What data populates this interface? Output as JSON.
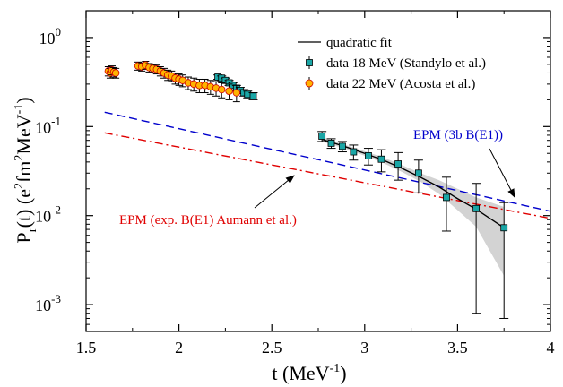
{
  "chart_data": {
    "type": "scatter",
    "title": "",
    "xlabel": "t (MeV",
    "xlabel_sup": "-1",
    "xlabel_close": ")",
    "ylabel_main": "P",
    "ylabel_sub": "r",
    "ylabel_mid": "(t)  (e",
    "ylabel_sup1": "2",
    "ylabel_fm": "fm",
    "ylabel_sup2": "2",
    "ylabel_mev": "MeV",
    "ylabel_sup3": "-1",
    "ylabel_close": ")",
    "xlim": [
      1.5,
      4.0
    ],
    "ylim": [
      0.0005,
      2.0
    ],
    "y_scale": "log",
    "x_ticks": [
      {
        "value": 1.5,
        "label": "1.5"
      },
      {
        "value": 2.0,
        "label": "2"
      },
      {
        "value": 2.5,
        "label": "2.5"
      },
      {
        "value": 3.0,
        "label": "3"
      },
      {
        "value": 3.5,
        "label": "3.5"
      },
      {
        "value": 4.0,
        "label": "4"
      }
    ],
    "y_ticks": [
      {
        "value": 0.001,
        "mant": "10",
        "exp": "-3"
      },
      {
        "value": 0.01,
        "mant": "10",
        "exp": "-2"
      },
      {
        "value": 0.1,
        "mant": "10",
        "exp": "-1"
      },
      {
        "value": 1,
        "mant": "10",
        "exp": "0"
      }
    ],
    "legend_position": "top-right",
    "legend": [
      {
        "label": "quadratic fit",
        "kind": "line",
        "color": "#000000"
      },
      {
        "label": "data 18 MeV (Standylo et al.)",
        "kind": "square",
        "color": "#1aa6a6"
      },
      {
        "label": "data  22 MeV (Acosta et al.)",
        "kind": "circle",
        "color": "#ffb300"
      }
    ],
    "annotations": [
      {
        "text": "EPM (3b B(E1))",
        "color": "#0000cc"
      },
      {
        "text": "EPM (exp. B(E1) Aumann et al.)",
        "color": "#e00000"
      }
    ],
    "series": [
      {
        "name": "EPM (3b B(E1))",
        "kind": "dashed-line",
        "color": "#0000cc",
        "x": [
          1.6,
          4.0
        ],
        "y": [
          0.145,
          0.0112
        ]
      },
      {
        "name": "EPM (exp. B(E1) Aumann et al.)",
        "kind": "dashdot-line",
        "color": "#e00000",
        "x": [
          1.6,
          4.0
        ],
        "y": [
          0.085,
          0.0093
        ]
      },
      {
        "name": "quadratic fit",
        "kind": "line",
        "color": "#000000",
        "x": [
          2.77,
          2.9,
          3.0,
          3.1,
          3.2,
          3.3,
          3.4,
          3.5,
          3.6,
          3.75
        ],
        "y": [
          0.072,
          0.059,
          0.05,
          0.042,
          0.034,
          0.027,
          0.021,
          0.0155,
          0.0118,
          0.0073
        ],
        "band_upper": [
          0.076,
          0.062,
          0.053,
          0.045,
          0.037,
          0.03,
          0.025,
          0.02,
          0.016,
          0.0125
        ],
        "band_lower": [
          0.068,
          0.056,
          0.047,
          0.039,
          0.031,
          0.024,
          0.0175,
          0.0115,
          0.0075,
          0.0021
        ]
      },
      {
        "name": "data 18 MeV (Standylo et al.)",
        "kind": "square",
        "color": "#1aa6a6",
        "points": [
          {
            "x": 2.21,
            "y": 0.36,
            "err": 0.02
          },
          {
            "x": 2.23,
            "y": 0.35,
            "err": 0.02
          },
          {
            "x": 2.25,
            "y": 0.33,
            "err": 0.02
          },
          {
            "x": 2.27,
            "y": 0.31,
            "err": 0.02
          },
          {
            "x": 2.29,
            "y": 0.29,
            "err": 0.02
          },
          {
            "x": 2.31,
            "y": 0.27,
            "err": 0.02
          },
          {
            "x": 2.33,
            "y": 0.255,
            "err": 0.02
          },
          {
            "x": 2.35,
            "y": 0.24,
            "err": 0.02
          },
          {
            "x": 2.37,
            "y": 0.23,
            "err": 0.02
          },
          {
            "x": 2.4,
            "y": 0.22,
            "err": 0.02
          },
          {
            "x": 2.77,
            "y": 0.078,
            "err": 0.01
          },
          {
            "x": 2.82,
            "y": 0.065,
            "err": 0.008
          },
          {
            "x": 2.88,
            "y": 0.06,
            "err": 0.008
          },
          {
            "x": 2.94,
            "y": 0.052,
            "err": 0.01
          },
          {
            "x": 3.02,
            "y": 0.047,
            "err": 0.01
          },
          {
            "x": 3.09,
            "y": 0.043,
            "err": 0.012
          },
          {
            "x": 3.18,
            "y": 0.038,
            "err": 0.013
          },
          {
            "x": 3.29,
            "y": 0.03,
            "err": 0.012
          },
          {
            "x": 3.44,
            "y": 0.016,
            "err_up": 0.011,
            "err_down": 0.0093
          },
          {
            "x": 3.6,
            "y": 0.012,
            "err_up": 0.011,
            "err_down": 0.0112
          },
          {
            "x": 3.75,
            "y": 0.0073,
            "err_up": 0.0067,
            "err_down": 0.0066
          }
        ]
      },
      {
        "name": "data  22 MeV (Acosta et al.)",
        "kind": "circle",
        "color": "#ffb300",
        "points": [
          {
            "x": 1.62,
            "y": 0.42,
            "err": 0.05
          },
          {
            "x": 1.63,
            "y": 0.4,
            "err": 0.05
          },
          {
            "x": 1.64,
            "y": 0.43,
            "err": 0.05
          },
          {
            "x": 1.65,
            "y": 0.41,
            "err": 0.05
          },
          {
            "x": 1.66,
            "y": 0.4,
            "err": 0.05
          },
          {
            "x": 1.78,
            "y": 0.48,
            "err": 0.05
          },
          {
            "x": 1.8,
            "y": 0.47,
            "err": 0.05
          },
          {
            "x": 1.82,
            "y": 0.49,
            "err": 0.05
          },
          {
            "x": 1.84,
            "y": 0.46,
            "err": 0.05
          },
          {
            "x": 1.86,
            "y": 0.45,
            "err": 0.05
          },
          {
            "x": 1.88,
            "y": 0.44,
            "err": 0.05
          },
          {
            "x": 1.9,
            "y": 0.42,
            "err": 0.05
          },
          {
            "x": 1.92,
            "y": 0.4,
            "err": 0.05
          },
          {
            "x": 1.94,
            "y": 0.38,
            "err": 0.05
          },
          {
            "x": 1.96,
            "y": 0.37,
            "err": 0.05
          },
          {
            "x": 1.98,
            "y": 0.35,
            "err": 0.05
          },
          {
            "x": 2.0,
            "y": 0.34,
            "err": 0.05
          },
          {
            "x": 2.02,
            "y": 0.33,
            "err": 0.05
          },
          {
            "x": 2.05,
            "y": 0.31,
            "err": 0.05
          },
          {
            "x": 2.08,
            "y": 0.3,
            "err": 0.05
          },
          {
            "x": 2.11,
            "y": 0.29,
            "err": 0.05
          },
          {
            "x": 2.14,
            "y": 0.29,
            "err": 0.05
          },
          {
            "x": 2.17,
            "y": 0.28,
            "err": 0.05
          },
          {
            "x": 2.2,
            "y": 0.27,
            "err": 0.05
          },
          {
            "x": 2.23,
            "y": 0.26,
            "err": 0.05
          },
          {
            "x": 2.27,
            "y": 0.25,
            "err": 0.05
          },
          {
            "x": 2.31,
            "y": 0.24,
            "err": 0.05
          }
        ]
      }
    ]
  }
}
